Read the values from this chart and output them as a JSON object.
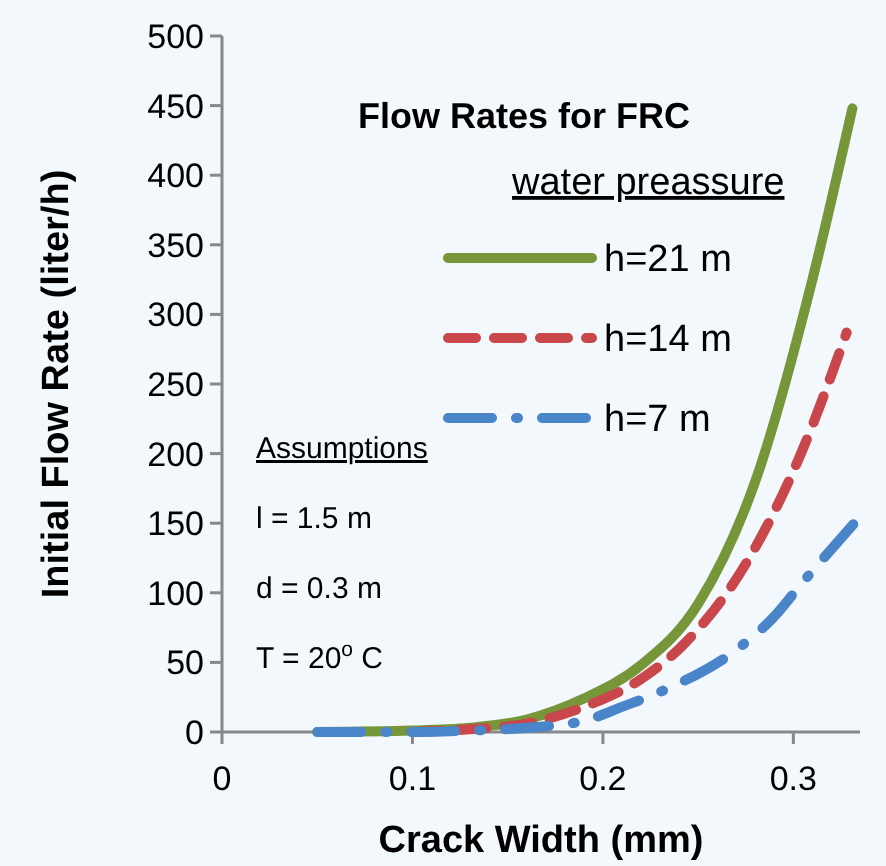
{
  "chart_data": {
    "type": "line",
    "title": "Flow Rates for FRC",
    "xlabel": "Crack Width (mm)",
    "ylabel": "Initial Flow Rate (liter/h)",
    "legend_title": "water preassure",
    "legend": "top right",
    "grid": false,
    "marker": "none",
    "xlim": [
      0,
      0.335
    ],
    "xticks": [
      0,
      0.1,
      0.2,
      0.3
    ],
    "ylim": [
      0,
      500
    ],
    "yticks": [
      0,
      50,
      100,
      150,
      200,
      250,
      300,
      350,
      400,
      450,
      500
    ],
    "annotations": [
      "Assumptions",
      "l = 1.5 m",
      "d = 0.3 m",
      "T = 20$^{o}$ C"
    ],
    "series": [
      {
        "name": "h=21 m",
        "color": "#77963a",
        "line_style": "solid",
        "x": [
          0.05,
          0.1,
          0.13,
          0.16,
          0.19,
          0.22,
          0.25,
          0.28,
          0.31,
          0.331
        ],
        "values": [
          0,
          1,
          3,
          9,
          24,
          48,
          92,
          180,
          325,
          448
        ]
      },
      {
        "name": "h=14 m",
        "color": "#c9474a",
        "line_style": "dashed",
        "x": [
          0.1,
          0.13,
          0.16,
          0.19,
          0.22,
          0.241,
          0.276,
          0.304,
          0.328
        ],
        "values": [
          0,
          2,
          6,
          18,
          38,
          61,
          123,
          200,
          287
        ]
      },
      {
        "name": "h=7 m",
        "color": "#4a84c9",
        "line_style": "dashdot",
        "x": [
          0.05,
          0.1,
          0.13,
          0.16,
          0.19,
          0.21,
          0.232,
          0.27,
          0.29,
          0.304,
          0.332
        ],
        "values": [
          0,
          0,
          1,
          3,
          8,
          18,
          30,
          59,
          83,
          106,
          150
        ]
      }
    ]
  }
}
